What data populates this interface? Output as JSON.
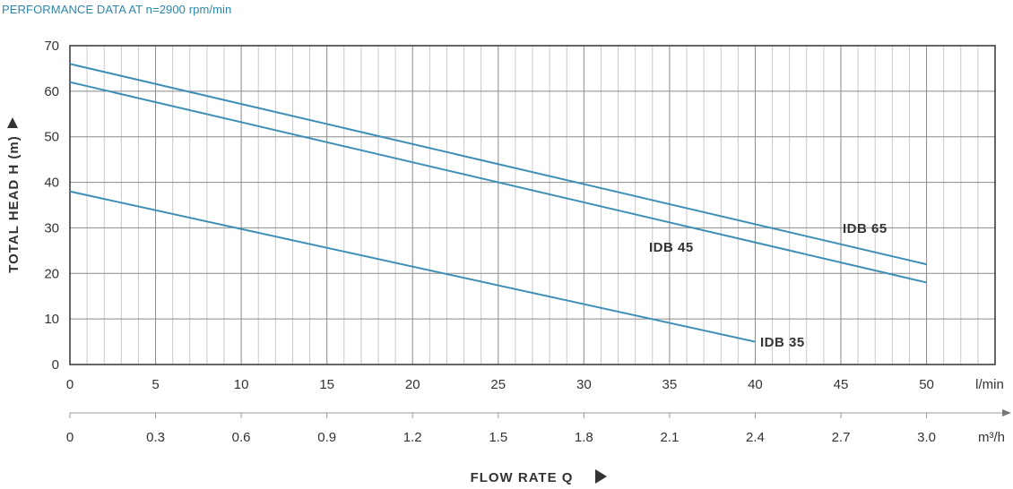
{
  "title": "PERFORMANCE DATA AT n=2900 rpm/min",
  "colors": {
    "title": "#2e86ab",
    "curve": "#3d8fb5",
    "grid_major": "#8a8a8a",
    "grid_minor": "#c8c8c8",
    "axis": "#333333"
  },
  "chart_data": {
    "type": "line",
    "ylabel": "TOTAL HEAD H (m)",
    "xlabel": "FLOW RATE Q",
    "x_unit": "l/min",
    "x2_unit": "m³/h",
    "xlim": [
      0,
      54
    ],
    "ylim": [
      0,
      70
    ],
    "x_ticks": [
      "0",
      "5",
      "10",
      "15",
      "20",
      "25",
      "30",
      "35",
      "40",
      "45",
      "50"
    ],
    "x2_ticks": [
      "0",
      "0.3",
      "0.6",
      "0.9",
      "1.2",
      "1.5",
      "1.8",
      "2.1",
      "2.4",
      "2.7",
      "3.0"
    ],
    "y_ticks": [
      "0",
      "10",
      "20",
      "30",
      "40",
      "50",
      "60",
      "70"
    ],
    "grid": true,
    "series": [
      {
        "name": "IDB 65",
        "x": [
          0,
          50
        ],
        "y": [
          66,
          22
        ]
      },
      {
        "name": "IDB 45",
        "x": [
          0,
          50
        ],
        "y": [
          62,
          18
        ]
      },
      {
        "name": "IDB 35",
        "x": [
          0,
          40
        ],
        "y": [
          38,
          5
        ]
      }
    ]
  }
}
